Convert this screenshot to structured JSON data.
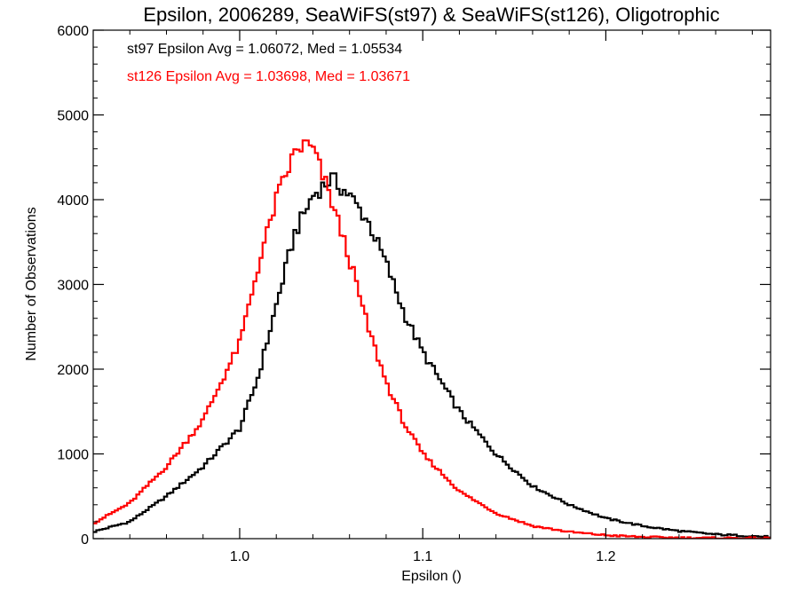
{
  "chart_data": {
    "type": "line",
    "title": "Epsilon, 2006289, SeaWiFS(st97) & SeaWiFS(st126), Oligotrophic",
    "xlabel": "Epsilon ()",
    "ylabel": "Number of Observations",
    "xlim": [
      0.92,
      1.29
    ],
    "ylim": [
      0,
      6000
    ],
    "x_ticks": [
      1.0,
      1.1,
      1.2
    ],
    "x_tick_labels": [
      "1.0",
      "1.1",
      "1.2"
    ],
    "y_ticks": [
      0,
      1000,
      2000,
      3000,
      4000,
      5000,
      6000
    ],
    "y_tick_labels": [
      "0",
      "1000",
      "2000",
      "3000",
      "4000",
      "5000",
      "6000"
    ],
    "grid": false,
    "step": "histogram",
    "annotations": [
      {
        "text": "st97 Epsilon Avg = 1.06072, Med = 1.05534",
        "color": "#000000"
      },
      {
        "text": "st126 Epsilon Avg = 1.03698, Med = 1.03671",
        "color": "#ff0000"
      }
    ],
    "series": [
      {
        "color": "#000000",
        "x": [
          0.92,
          0.94,
          0.96,
          0.98,
          1.0,
          1.01,
          1.02,
          1.03,
          1.04,
          1.05,
          1.06,
          1.07,
          1.08,
          1.09,
          1.1,
          1.12,
          1.14,
          1.16,
          1.18,
          1.2,
          1.22,
          1.24,
          1.26,
          1.29
        ],
        "y": [
          80,
          200,
          500,
          850,
          1300,
          1900,
          2750,
          3600,
          4050,
          4250,
          4050,
          3750,
          3250,
          2650,
          2200,
          1500,
          1000,
          620,
          400,
          240,
          150,
          90,
          50,
          20
        ]
      },
      {
        "color": "#ff0000",
        "x": [
          0.92,
          0.94,
          0.96,
          0.98,
          1.0,
          1.01,
          1.02,
          1.03,
          1.035,
          1.04,
          1.05,
          1.06,
          1.07,
          1.08,
          1.09,
          1.1,
          1.12,
          1.14,
          1.16,
          1.18,
          1.2,
          1.22,
          1.24,
          1.29
        ],
        "y": [
          180,
          420,
          850,
          1400,
          2300,
          3200,
          4000,
          4550,
          4650,
          4600,
          4000,
          3300,
          2500,
          1850,
          1350,
          1000,
          560,
          300,
          150,
          80,
          40,
          20,
          10,
          5
        ]
      }
    ]
  }
}
